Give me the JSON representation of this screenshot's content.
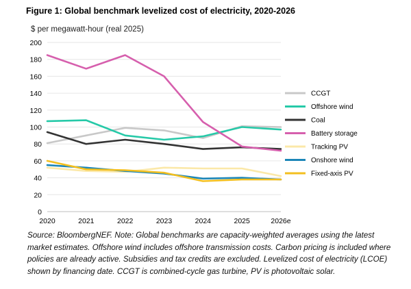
{
  "title": "Figure 1: Global benchmark levelized cost of electricity, 2020-2026",
  "unit_label": "$ per megawatt-hour (real 2025)",
  "source_note": "Source: BloombergNEF. Note: Global benchmarks are capacity-weighted averages using the latest market estimates. Offshore wind includes offshore transmission costs. Carbon pricing is included where policies are already active. Subsidies and tax credits are excluded. Levelized cost of electricity (LCOE) shown by financing date. CCGT is combined-cycle gas turbine, PV is photovoltaic solar.",
  "chart_data": {
    "type": "line",
    "title": "Figure 1: Global benchmark levelized cost of electricity, 2020-2026",
    "ylabel": "$ per megawatt-hour (real 2025)",
    "x": [
      "2020",
      "2021",
      "2022",
      "2023",
      "2024",
      "2025",
      "2026e"
    ],
    "ylim": [
      0,
      200
    ],
    "yticks": [
      0,
      20,
      40,
      60,
      80,
      100,
      120,
      140,
      160,
      180,
      200
    ],
    "grid": true,
    "legend_position": "right",
    "series": [
      {
        "name": "CCGT",
        "color": "#c8c8c8",
        "values": [
          81,
          90,
          99,
          96,
          87,
          101,
          100
        ]
      },
      {
        "name": "Offshore wind",
        "color": "#26c9a8",
        "values": [
          107,
          108,
          90,
          85,
          89,
          100,
          97
        ]
      },
      {
        "name": "Coal",
        "color": "#333333",
        "values": [
          94,
          80,
          85,
          80,
          74,
          76,
          74
        ]
      },
      {
        "name": "Battery storage",
        "color": "#d65fad",
        "values": [
          185,
          169,
          185,
          160,
          106,
          77,
          72
        ]
      },
      {
        "name": "Tracking PV",
        "color": "#fbe8a8",
        "values": [
          52,
          48,
          47,
          52,
          51,
          51,
          42
        ]
      },
      {
        "name": "Onshore wind",
        "color": "#1c86b8",
        "values": [
          55,
          52,
          48,
          45,
          39,
          40,
          38
        ]
      },
      {
        "name": "Fixed-axis PV",
        "color": "#f3bf1f",
        "values": [
          60,
          50,
          49,
          46,
          36,
          38,
          38
        ]
      }
    ]
  }
}
